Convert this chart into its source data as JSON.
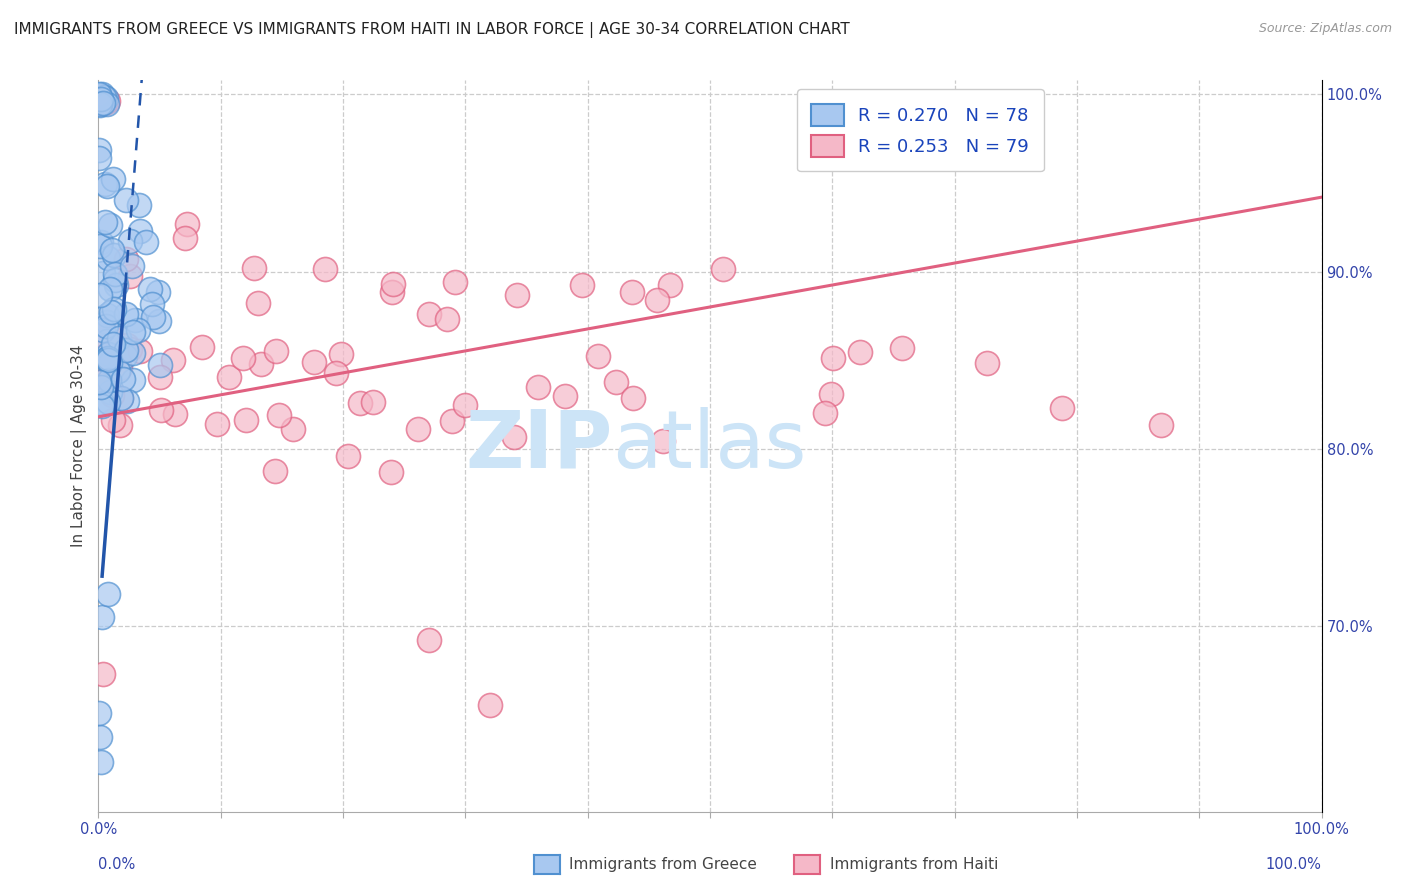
{
  "title": "IMMIGRANTS FROM GREECE VS IMMIGRANTS FROM HAITI IN LABOR FORCE | AGE 30-34 CORRELATION CHART",
  "source": "Source: ZipAtlas.com",
  "ylabel": "In Labor Force | Age 30-34",
  "greece_color": "#A8C8F0",
  "haiti_color": "#F5B8C8",
  "greece_edge_color": "#5090D0",
  "haiti_edge_color": "#E06080",
  "greece_line_color": "#2255AA",
  "haiti_line_color": "#E06080",
  "xmin": 0.0,
  "xmax": 1.0,
  "ymin": 0.595,
  "ymax": 1.008,
  "right_yticks": [
    0.7,
    0.8,
    0.9,
    1.0
  ],
  "right_ytick_labels": [
    "70.0%",
    "80.0%",
    "90.0%",
    "100.0%"
  ],
  "bottom_left_label": "0.0%",
  "bottom_right_label": "100.0%",
  "bottom_labels": [
    "Immigrants from Greece",
    "Immigrants from Haiti"
  ],
  "greece_N": 78,
  "haiti_N": 79,
  "greece_R": 0.27,
  "haiti_R": 0.253,
  "haiti_line_x0": 0.0,
  "haiti_line_y0": 0.818,
  "haiti_line_x1": 1.0,
  "haiti_line_y1": 0.942,
  "greece_line_x0": 0.003,
  "greece_line_y0": 0.728,
  "greece_line_x1": 0.035,
  "greece_line_y1": 1.005
}
